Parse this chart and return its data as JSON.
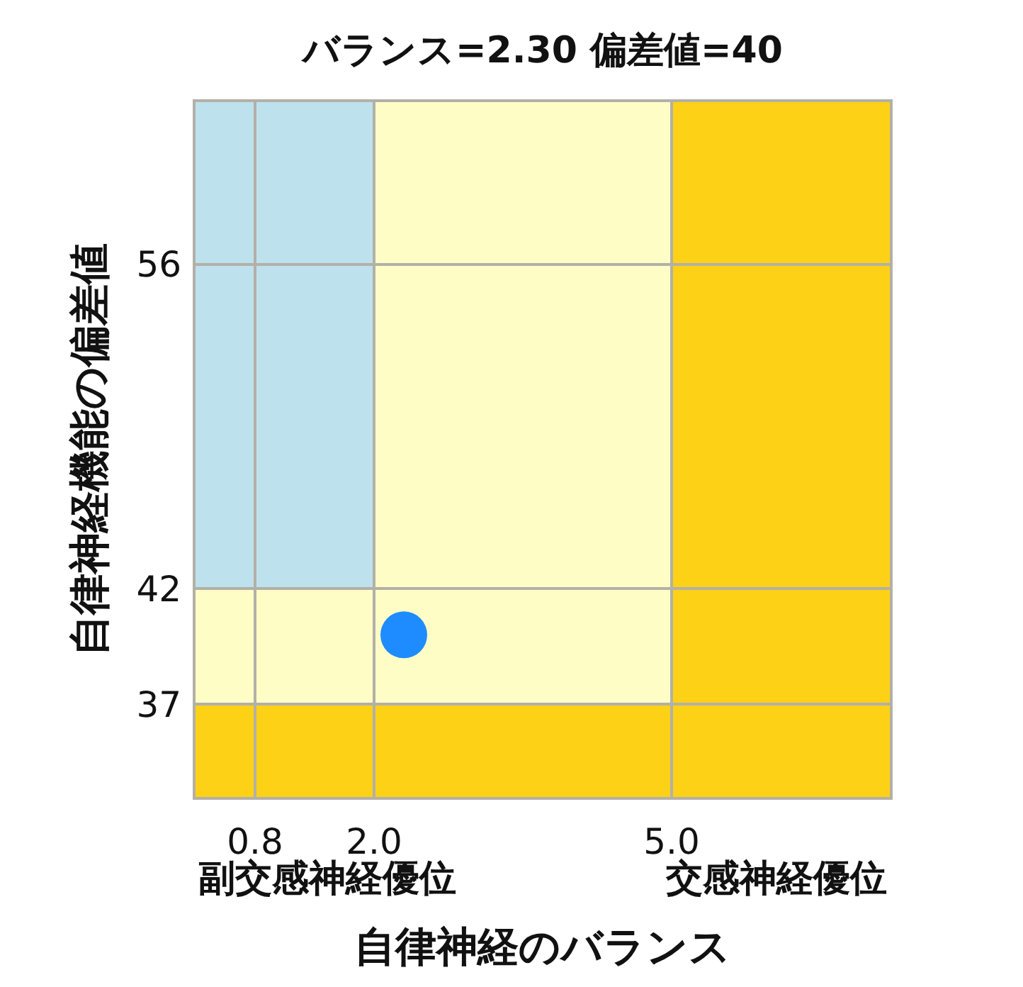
{
  "chart_data": {
    "type": "scatter",
    "title": "バランス=2.30 偏差値=40",
    "xlabel": "自律神経のバランス",
    "ylabel": "自律神経機能の偏差値",
    "series": [
      {
        "color": "#1e8cff",
        "x": [
          2.3
        ],
        "values": [
          40
        ]
      }
    ],
    "marker": "circle",
    "xlim": [
      0.2,
      7.2
    ],
    "ylim": [
      33,
      63
    ],
    "xticks": [
      {
        "value": 0.8,
        "label": "0.8"
      },
      {
        "value": 2.0,
        "label": "2.0"
      },
      {
        "value": 5.0,
        "label": "5.0"
      }
    ],
    "yticks": [
      37,
      42,
      56
    ],
    "grid": true,
    "bands": [
      {
        "axis": "y",
        "from": 37,
        "to": 42,
        "color": "#fffdc6"
      },
      {
        "axis": "y",
        "from": 42,
        "to": 63,
        "color": "#bee1ee"
      },
      {
        "axis": "x",
        "from": 2.0,
        "to": 5.0,
        "color": "#fffdc6"
      },
      {
        "axis": "x",
        "from": 5.0,
        "to": 7.2,
        "color": "#fdd116"
      },
      {
        "axis": "y",
        "from": 33,
        "to": 37,
        "color": "#fdd116"
      }
    ],
    "annotations": [
      "副交感神経優位",
      "交感神経優位"
    ]
  }
}
